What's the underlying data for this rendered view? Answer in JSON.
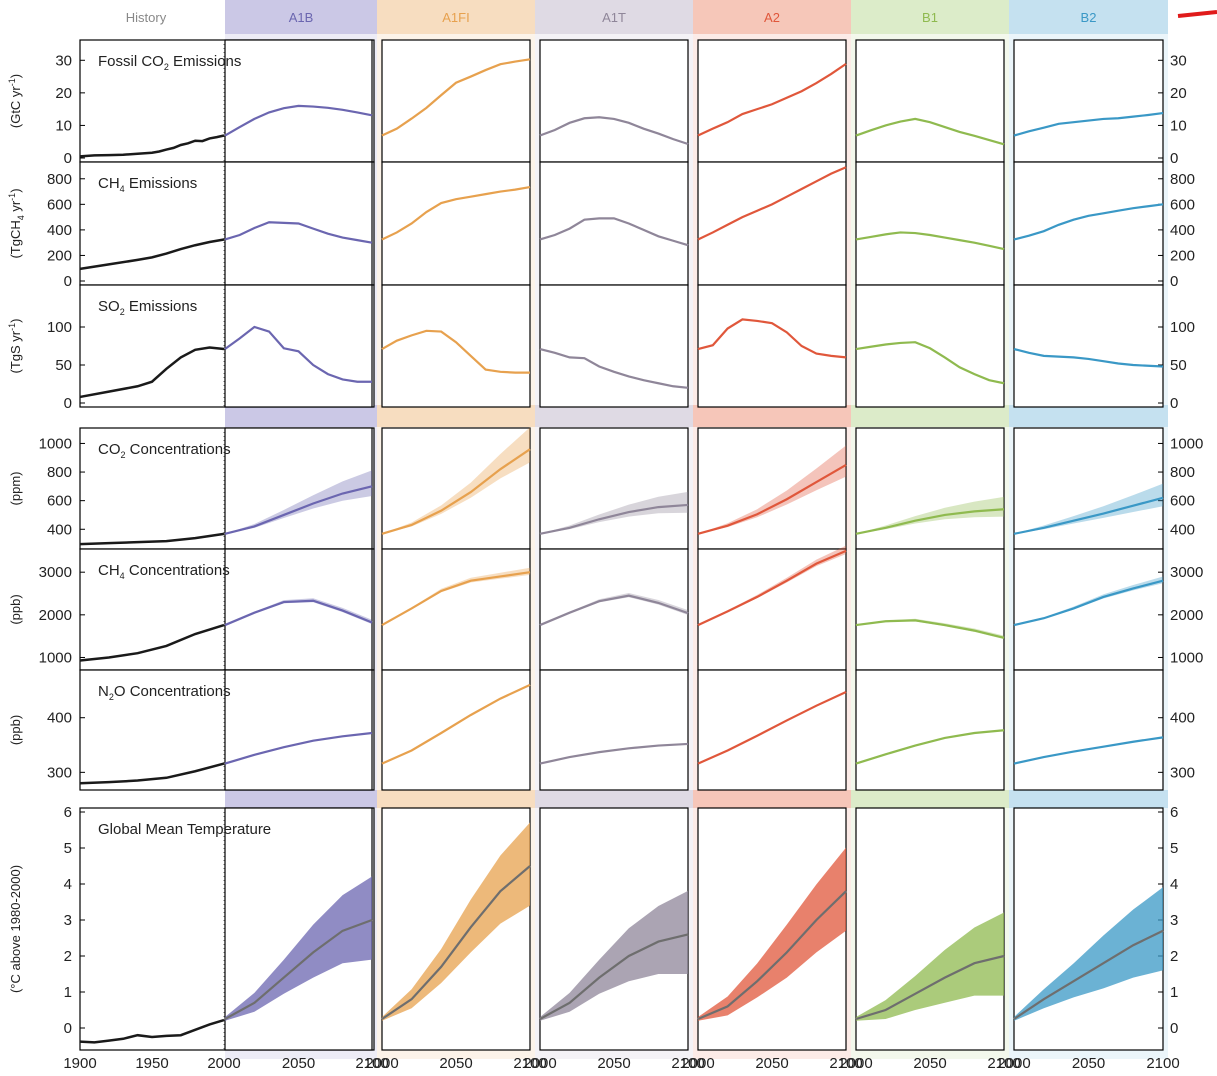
{
  "chart_data": {
    "type": "line",
    "x_range": [
      1900,
      2100
    ],
    "scenario_header_text": "History",
    "scenarios": [
      {
        "name": "A1B",
        "color": "#6b66b0",
        "band": "#cbc8e6"
      },
      {
        "name": "A1FI",
        "color": "#e7a14e",
        "band": "#f7ddc0"
      },
      {
        "name": "A1T",
        "color": "#8f8699",
        "band": "#dfdae4"
      },
      {
        "name": "A2",
        "color": "#e0573b",
        "band": "#f6c7b9"
      },
      {
        "name": "B1",
        "color": "#8fba4f",
        "band": "#dcecc9"
      },
      {
        "name": "B2",
        "color": "#3a98c6",
        "band": "#c5e1f0"
      }
    ],
    "x_ticks": {
      "history": [
        "1900",
        "1950",
        "2000"
      ],
      "scenario": [
        "2000",
        "2050",
        "2100"
      ]
    },
    "panels": [
      {
        "id": "fossil-co2",
        "title": "Fossil CO",
        "title_sub": "2",
        "title_tail": " Emissions",
        "ylabel": "(GtC yr",
        "ylabel_sup": "-1",
        "ylabel_tail": ")",
        "ylim": [
          0,
          35
        ],
        "yticks": [
          "0",
          "10",
          "20",
          "30"
        ],
        "history": {
          "x": [
            1900,
            1910,
            1920,
            1930,
            1940,
            1950,
            1955,
            1960,
            1965,
            1970,
            1975,
            1980,
            1985,
            1990,
            1995,
            2000
          ],
          "y": [
            0.5,
            0.8,
            0.9,
            1.0,
            1.3,
            1.6,
            2.0,
            2.6,
            3.1,
            4.0,
            4.5,
            5.3,
            5.2,
            6.0,
            6.4,
            6.9
          ]
        },
        "x": [
          2000,
          2010,
          2020,
          2030,
          2040,
          2050,
          2060,
          2070,
          2080,
          2090,
          2100
        ],
        "series": {
          "A1B": [
            6.9,
            9.5,
            12.0,
            14.0,
            15.3,
            16.0,
            15.8,
            15.4,
            14.8,
            14.0,
            13.1
          ],
          "A1FI": [
            6.9,
            9.0,
            12.1,
            15.4,
            19.3,
            23.1,
            25.0,
            27.0,
            28.8,
            29.6,
            30.3
          ],
          "A1T": [
            6.9,
            8.6,
            10.8,
            12.2,
            12.5,
            12.0,
            10.8,
            9.0,
            7.5,
            5.8,
            4.3
          ],
          "A2": [
            6.9,
            9.0,
            11.0,
            13.5,
            15.0,
            16.5,
            18.5,
            20.5,
            23.0,
            25.8,
            28.9
          ],
          "B1": [
            6.9,
            8.5,
            10.0,
            11.2,
            12.0,
            11.0,
            9.5,
            8.0,
            6.8,
            5.5,
            4.2
          ],
          "B2": [
            6.9,
            8.2,
            9.3,
            10.5,
            11.0,
            11.5,
            12.0,
            12.2,
            12.7,
            13.2,
            13.8
          ]
        }
      },
      {
        "id": "ch4-emissions",
        "title": "CH",
        "title_sub": "4",
        "title_tail": " Emissions",
        "ylabel": "(TgCH",
        "ylabel_sub": "4",
        "ylabel_mid": " yr",
        "ylabel_sup": "-1",
        "ylabel_tail": ")",
        "ylim": [
          0,
          900
        ],
        "yticks": [
          "0",
          "200",
          "400",
          "600",
          "800"
        ],
        "history": {
          "x": [
            1900,
            1920,
            1940,
            1950,
            1960,
            1970,
            1980,
            1990,
            2000
          ],
          "y": [
            95,
            130,
            165,
            185,
            215,
            250,
            280,
            305,
            325
          ]
        },
        "x": [
          2000,
          2010,
          2020,
          2030,
          2040,
          2050,
          2060,
          2070,
          2080,
          2090,
          2100
        ],
        "series": {
          "A1B": [
            325,
            360,
            415,
            460,
            455,
            450,
            410,
            370,
            340,
            320,
            300
          ],
          "A1FI": [
            325,
            380,
            450,
            540,
            610,
            640,
            660,
            680,
            700,
            715,
            735
          ],
          "A1T": [
            325,
            360,
            410,
            480,
            490,
            490,
            450,
            400,
            350,
            315,
            280
          ],
          "A2": [
            325,
            380,
            440,
            500,
            550,
            600,
            660,
            720,
            780,
            840,
            890
          ],
          "B1": [
            325,
            345,
            365,
            380,
            375,
            360,
            340,
            320,
            300,
            275,
            250
          ],
          "B2": [
            325,
            355,
            390,
            440,
            480,
            510,
            530,
            550,
            570,
            585,
            600
          ]
        }
      },
      {
        "id": "so2-emissions",
        "title": "SO",
        "title_sub": "2",
        "title_tail": " Emissions",
        "ylabel": "(TgS yr",
        "ylabel_sup": "-1",
        "ylabel_tail": ")",
        "ylim": [
          0,
          150
        ],
        "yticks": [
          "0",
          "50",
          "100"
        ],
        "history": {
          "x": [
            1900,
            1920,
            1940,
            1950,
            1960,
            1970,
            1980,
            1990,
            2000
          ],
          "y": [
            8,
            15,
            22,
            28,
            45,
            60,
            70,
            73,
            71
          ]
        },
        "x": [
          2000,
          2010,
          2020,
          2030,
          2040,
          2050,
          2060,
          2070,
          2080,
          2090,
          2100
        ],
        "series": {
          "A1B": [
            71,
            85,
            100,
            94,
            72,
            68,
            50,
            38,
            31,
            28,
            28
          ],
          "A1FI": [
            71,
            82,
            89,
            95,
            94,
            80,
            62,
            44,
            41,
            40,
            40
          ],
          "A1T": [
            71,
            66,
            60,
            59,
            48,
            41,
            35,
            30,
            26,
            22,
            20
          ],
          "A2": [
            71,
            76,
            98,
            110,
            108,
            105,
            93,
            75,
            65,
            62,
            60
          ],
          "B1": [
            71,
            74,
            77,
            79,
            80,
            72,
            60,
            47,
            38,
            30,
            26
          ],
          "B2": [
            71,
            66,
            62,
            61,
            60,
            58,
            55,
            52,
            50,
            49,
            48
          ]
        }
      },
      {
        "id": "co2-conc",
        "title": "CO",
        "title_sub": "2",
        "title_tail": " Concentrations",
        "ylabel": "(ppm)",
        "ylim": [
          290,
          1080
        ],
        "yticks": [
          "400",
          "600",
          "800",
          "1000"
        ],
        "history": {
          "x": [
            1900,
            1920,
            1940,
            1960,
            1980,
            2000
          ],
          "y": [
            296,
            303,
            310,
            317,
            338,
            368
          ]
        },
        "x": [
          2000,
          2020,
          2040,
          2060,
          2080,
          2100
        ],
        "series": {
          "A1B": [
            368,
            420,
            500,
            580,
            650,
            700
          ],
          "A1FI": [
            368,
            430,
            530,
            660,
            820,
            960
          ],
          "A1T": [
            368,
            410,
            470,
            520,
            555,
            570
          ],
          "A2": [
            368,
            425,
            505,
            610,
            730,
            850
          ],
          "B1": [
            368,
            410,
            460,
            500,
            525,
            540
          ],
          "B2": [
            368,
            410,
            460,
            510,
            565,
            620
          ]
        },
        "band_widths": [
          0,
          0.04,
          0.07,
          0.1,
          0.13,
          0.16
        ]
      },
      {
        "id": "ch4-conc",
        "title": "CH",
        "title_sub": "4",
        "title_tail": " Concentrations",
        "ylabel": "(ppb)",
        "ylim": [
          800,
          3450
        ],
        "yticks": [
          "1000",
          "2000",
          "3000"
        ],
        "history": {
          "x": [
            1900,
            1920,
            1940,
            1960,
            1980,
            2000
          ],
          "y": [
            930,
            1000,
            1100,
            1270,
            1550,
            1760
          ]
        },
        "x": [
          2000,
          2020,
          2040,
          2060,
          2080,
          2100
        ],
        "series": {
          "A1B": [
            1760,
            2050,
            2300,
            2330,
            2100,
            1820
          ],
          "A1FI": [
            1760,
            2150,
            2560,
            2800,
            2900,
            3000
          ],
          "A1T": [
            1760,
            2050,
            2320,
            2450,
            2280,
            2040
          ],
          "A2": [
            1760,
            2080,
            2420,
            2800,
            3200,
            3500
          ],
          "B1": [
            1760,
            1850,
            1870,
            1760,
            1630,
            1460
          ],
          "B2": [
            1760,
            1920,
            2150,
            2420,
            2620,
            2800
          ]
        },
        "band_widths": [
          0,
          0.01,
          0.02,
          0.025,
          0.03,
          0.035
        ]
      },
      {
        "id": "n2o-conc",
        "title": "N",
        "title_sub": "2",
        "title_tail": "O Concentrations",
        "ylabel": "(ppb)",
        "ylim": [
          275,
          480
        ],
        "yticks": [
          "300",
          "400"
        ],
        "history": {
          "x": [
            1900,
            1920,
            1940,
            1960,
            1980,
            2000
          ],
          "y": [
            280,
            282,
            285,
            290,
            302,
            316
          ]
        },
        "x": [
          2000,
          2020,
          2040,
          2060,
          2080,
          2100
        ],
        "series": {
          "A1B": [
            316,
            332,
            346,
            358,
            366,
            372
          ],
          "A1FI": [
            316,
            340,
            372,
            405,
            435,
            460
          ],
          "A1T": [
            316,
            328,
            337,
            344,
            349,
            352
          ],
          "A2": [
            316,
            340,
            367,
            395,
            422,
            447
          ],
          "B1": [
            316,
            333,
            349,
            363,
            372,
            377
          ],
          "B2": [
            316,
            328,
            338,
            347,
            356,
            364
          ]
        }
      },
      {
        "id": "temperature",
        "title": "Global Mean Temperature",
        "ylabel": "(°C above 1980-2000)",
        "ylim": [
          -0.5,
          6
        ],
        "yticks": [
          "0",
          "1",
          "2",
          "3",
          "4",
          "5",
          "6"
        ],
        "history": {
          "x": [
            1900,
            1910,
            1920,
            1930,
            1940,
            1950,
            1960,
            1970,
            1980,
            1990,
            2000
          ],
          "y": [
            -0.38,
            -0.4,
            -0.35,
            -0.3,
            -0.2,
            -0.25,
            -0.22,
            -0.2,
            -0.05,
            0.1,
            0.22
          ]
        },
        "x": [
          2000,
          2020,
          2040,
          2060,
          2080,
          2100
        ],
        "series": {
          "A1B": [
            0.25,
            0.7,
            1.4,
            2.1,
            2.7,
            3.0
          ],
          "A1FI": [
            0.25,
            0.8,
            1.7,
            2.8,
            3.8,
            4.5
          ],
          "A1T": [
            0.25,
            0.7,
            1.4,
            2.0,
            2.4,
            2.6
          ],
          "A2": [
            0.25,
            0.6,
            1.3,
            2.1,
            3.0,
            3.8
          ],
          "B1": [
            0.25,
            0.5,
            0.95,
            1.4,
            1.8,
            2.0
          ],
          "B2": [
            0.25,
            0.8,
            1.3,
            1.8,
            2.3,
            2.7
          ]
        },
        "band_widths": [
          0.05,
          0.25,
          0.45,
          0.7,
          0.9,
          1.1
        ]
      }
    ]
  }
}
